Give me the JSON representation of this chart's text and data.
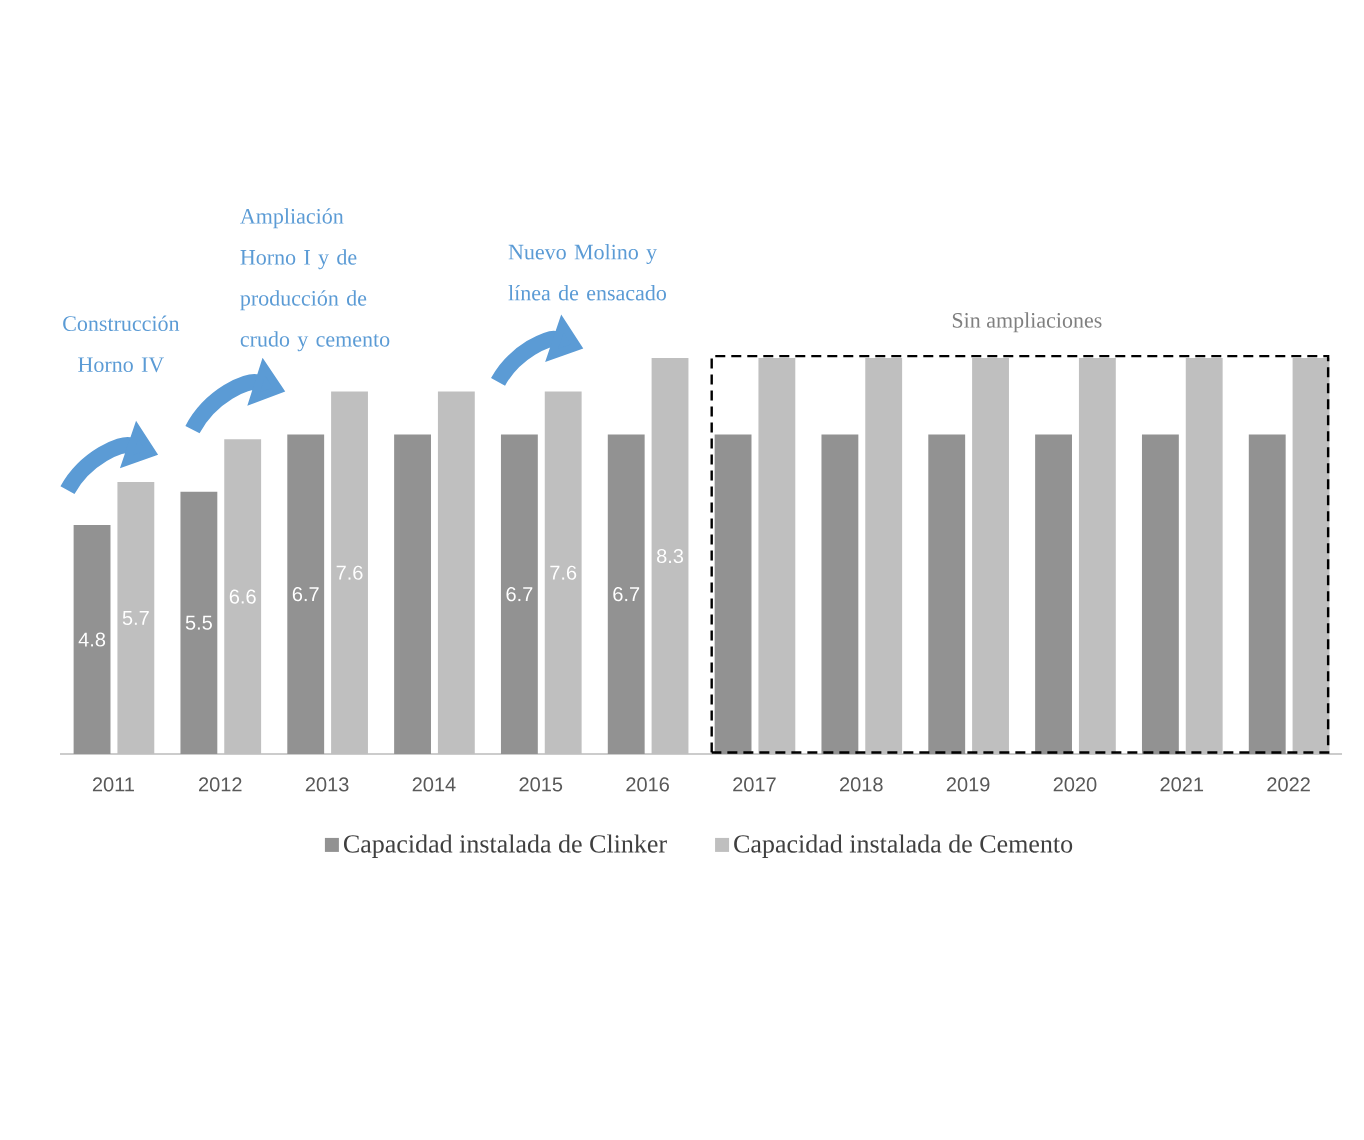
{
  "chart_data": {
    "type": "bar",
    "categories": [
      "2011",
      "2012",
      "2013",
      "2014",
      "2015",
      "2016",
      "2017",
      "2018",
      "2019",
      "2020",
      "2021",
      "2022"
    ],
    "series": [
      {
        "name": "Capacidad instalada de Clinker",
        "color": "#929292",
        "values": [
          4.8,
          5.5,
          6.7,
          6.7,
          6.7,
          6.7,
          6.7,
          6.7,
          6.7,
          6.7,
          6.7,
          6.7
        ],
        "value_labels": [
          "4.8",
          "5.5",
          "6.7",
          null,
          "6.7",
          "6.7",
          null,
          null,
          null,
          null,
          null,
          null
        ]
      },
      {
        "name": "Capacidad instalada de Cemento",
        "color": "#bfbfbf",
        "values": [
          5.7,
          6.6,
          7.6,
          7.6,
          7.6,
          8.3,
          8.3,
          8.3,
          8.3,
          8.3,
          8.3,
          8.3
        ],
        "value_labels": [
          "5.7",
          "6.6",
          "7.6",
          null,
          "7.6",
          "8.3",
          null,
          null,
          null,
          null,
          null,
          null
        ]
      }
    ],
    "annotations": [
      "Construcción Horno IV",
      "Ampliación Horno I y de producción de crudo y cemento",
      "Nuevo Molino y línea de ensacado",
      "Sin ampliaciones"
    ],
    "legend": "bottom"
  }
}
